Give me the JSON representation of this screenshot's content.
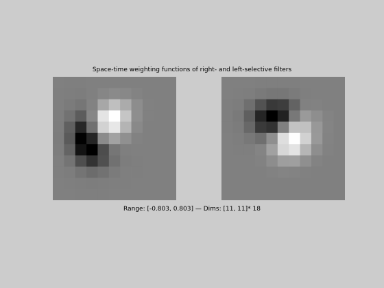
{
  "figure": {
    "title": "Space-time weighting functions of right- and left-selective filters",
    "caption": "Range: [-0.803, 0.803] — Dims: [11, 11]* 18"
  },
  "range": [
    -0.803,
    0.803
  ],
  "grid_size": [
    11,
    11
  ],
  "filters": [
    {
      "values": [
        [
          0.0,
          -0.001,
          -0.003,
          0.0,
          0.004,
          0.006,
          0.005,
          0.003,
          0.001,
          0.0,
          0.0
        ],
        [
          -0.001,
          -0.007,
          -0.013,
          0.002,
          0.038,
          0.064,
          0.052,
          0.024,
          0.005,
          0.0,
          0.0
        ],
        [
          -0.003,
          -0.026,
          -0.058,
          0.015,
          0.249,
          0.402,
          0.273,
          0.083,
          0.01,
          0.0,
          0.0
        ],
        [
          -0.008,
          -0.084,
          -0.222,
          0.039,
          0.631,
          0.8,
          0.435,
          0.094,
          0.008,
          0.0,
          0.0
        ],
        [
          -0.016,
          -0.196,
          -0.557,
          -0.099,
          0.52,
          0.65,
          0.328,
          0.061,
          0.004,
          0.0,
          0.0
        ],
        [
          -0.019,
          -0.236,
          -0.789,
          -0.571,
          0.075,
          0.215,
          0.103,
          0.016,
          0.001,
          0.0,
          0.0
        ],
        [
          -0.014,
          -0.175,
          -0.68,
          -0.8,
          -0.32,
          -0.058,
          -0.006,
          0.001,
          0.0,
          0.0,
          0.0
        ],
        [
          -0.006,
          -0.074,
          -0.309,
          -0.48,
          -0.3,
          -0.092,
          -0.016,
          -0.002,
          0.0,
          0.0,
          0.0
        ],
        [
          -0.002,
          -0.018,
          -0.075,
          -0.124,
          -0.088,
          -0.031,
          -0.006,
          -0.001,
          0.0,
          0.0,
          0.0
        ],
        [
          0.0,
          -0.002,
          -0.009,
          -0.015,
          -0.011,
          -0.004,
          -0.001,
          0.0,
          0.0,
          0.0,
          0.0
        ],
        [
          0.0,
          0.0,
          -0.001,
          -0.001,
          -0.001,
          0.0,
          0.0,
          0.0,
          0.0,
          0.0,
          0.0
        ]
      ]
    },
    {
      "values": [
        [
          0.0,
          0.0,
          0.0,
          -0.001,
          -0.002,
          -0.002,
          -0.001,
          0.0,
          0.0,
          0.0,
          0.0
        ],
        [
          0.0,
          -0.002,
          -0.012,
          -0.033,
          -0.052,
          -0.051,
          -0.028,
          -0.005,
          0.001,
          0.0,
          0.0
        ],
        [
          -0.001,
          -0.017,
          -0.105,
          -0.289,
          -0.446,
          -0.417,
          -0.179,
          0.007,
          0.018,
          0.004,
          0.0
        ],
        [
          -0.001,
          -0.033,
          -0.202,
          -0.568,
          -0.8,
          -0.593,
          -0.049,
          0.167,
          0.09,
          0.019,
          0.002
        ],
        [
          -0.001,
          -0.023,
          -0.15,
          -0.435,
          -0.489,
          0.004,
          0.427,
          0.413,
          0.157,
          0.028,
          0.002
        ],
        [
          0.0,
          -0.007,
          -0.045,
          -0.106,
          0.1,
          0.598,
          0.799,
          0.511,
          0.16,
          0.025,
          0.002
        ],
        [
          0.0,
          -0.001,
          -0.003,
          0.031,
          0.208,
          0.549,
          0.624,
          0.338,
          0.092,
          0.013,
          0.001
        ],
        [
          0.0,
          0.0,
          0.002,
          0.018,
          0.083,
          0.189,
          0.196,
          0.095,
          0.023,
          0.003,
          0.0
        ],
        [
          0.0,
          0.0,
          0.0,
          0.003,
          0.013,
          0.027,
          0.025,
          0.011,
          0.002,
          0.0,
          0.0
        ],
        [
          0.0,
          0.0,
          0.0,
          0.0,
          0.001,
          0.002,
          0.001,
          0.001,
          0.0,
          0.0,
          0.0
        ],
        [
          0.0,
          0.0,
          0.0,
          0.0,
          0.0,
          0.0,
          0.0,
          0.0,
          0.0,
          0.0,
          0.0
        ]
      ]
    }
  ]
}
